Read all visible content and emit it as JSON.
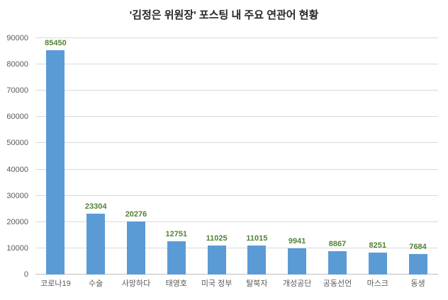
{
  "chart_data": {
    "type": "bar",
    "title": "'김정은 위원장' 포스팅 내 주요 연관어 현황",
    "categories": [
      "코로나19",
      "수술",
      "사망하다",
      "태영호",
      "미국 정부",
      "탈북자",
      "개성공단",
      "공동선언",
      "마스크",
      "동생"
    ],
    "values": [
      85450,
      23304,
      20276,
      12751,
      11025,
      11015,
      9941,
      8867,
      8251,
      7684
    ],
    "xlabel": "",
    "ylabel": "",
    "ylim": [
      0,
      90000
    ],
    "ytick_step": 10000,
    "grid": true,
    "legend": false,
    "bar_color": "#5b9bd5",
    "value_label_color": "#548235"
  }
}
